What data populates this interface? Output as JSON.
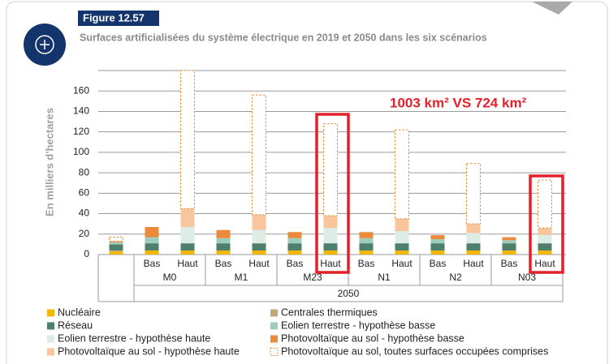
{
  "chart_data": {
    "type": "stacked_bar",
    "figure_label": "Figure 12.57",
    "title": "Surfaces artificialisées du système électrique en 2019 et 2050 dans les six scénarios",
    "ylabel": "En milliers d'hectares",
    "annotation": "1003 km² VS 724 km²",
    "period": "2050",
    "groups": [
      "M0",
      "M1",
      "M23",
      "N1",
      "N2",
      "N03"
    ],
    "categories": [
      null,
      "Bas",
      "Haut",
      "Bas",
      "Haut",
      "Bas",
      "Haut",
      "Bas",
      "Haut",
      "Bas",
      "Haut",
      "Bas",
      "Haut"
    ],
    "ylim": [
      0,
      180
    ],
    "yticks": [
      0,
      20,
      40,
      60,
      80,
      100,
      120,
      140,
      160
    ],
    "grid": true,
    "series": [
      {
        "name": "Nucléaire",
        "color": "#f2b705",
        "values": [
          3,
          4,
          4,
          4,
          4,
          4,
          4,
          4,
          4,
          4,
          4,
          4,
          4
        ]
      },
      {
        "name": "Centrales thermiques",
        "color": "#c9a57e",
        "values": [
          1,
          0,
          0,
          0,
          0,
          0,
          0,
          0,
          0,
          0,
          0,
          0,
          0
        ]
      },
      {
        "name": "Réseau",
        "color": "#4e7f6d",
        "values": [
          6,
          7,
          7,
          7,
          7,
          7,
          7,
          7,
          7,
          7,
          7,
          7,
          7
        ]
      },
      {
        "name": "Eolien terrestre - hypothèse basse",
        "color": "#9ccdbd",
        "values": [
          2,
          6,
          0,
          5,
          0,
          5,
          0,
          5,
          0,
          4,
          0,
          3,
          0
        ]
      },
      {
        "name": "Eolien terrestre - hypothèse haute",
        "color": "#dcede5",
        "values": [
          0,
          0,
          16,
          0,
          13,
          0,
          15,
          0,
          12,
          0,
          10,
          0,
          8
        ]
      },
      {
        "name": "Photovoltaïque au sol - hypothèse basse",
        "color": "#ec8a3c",
        "values": [
          1,
          10,
          0,
          8,
          0,
          6,
          0,
          6,
          0,
          4,
          0,
          3,
          0
        ]
      },
      {
        "name": "Photovoltaïque au sol - hypothèse haute",
        "color": "#f8c59c",
        "values": [
          0,
          0,
          18,
          0,
          15,
          0,
          12,
          0,
          12,
          0,
          9,
          0,
          7
        ]
      },
      {
        "name": "Photovoltaïque au sol, toutes surfaces occupées comprises",
        "color": "#ec8a3c",
        "style": "dashed",
        "values": [
          4,
          0,
          135,
          0,
          117,
          0,
          90,
          0,
          87,
          0,
          59,
          0,
          47
        ]
      }
    ]
  }
}
